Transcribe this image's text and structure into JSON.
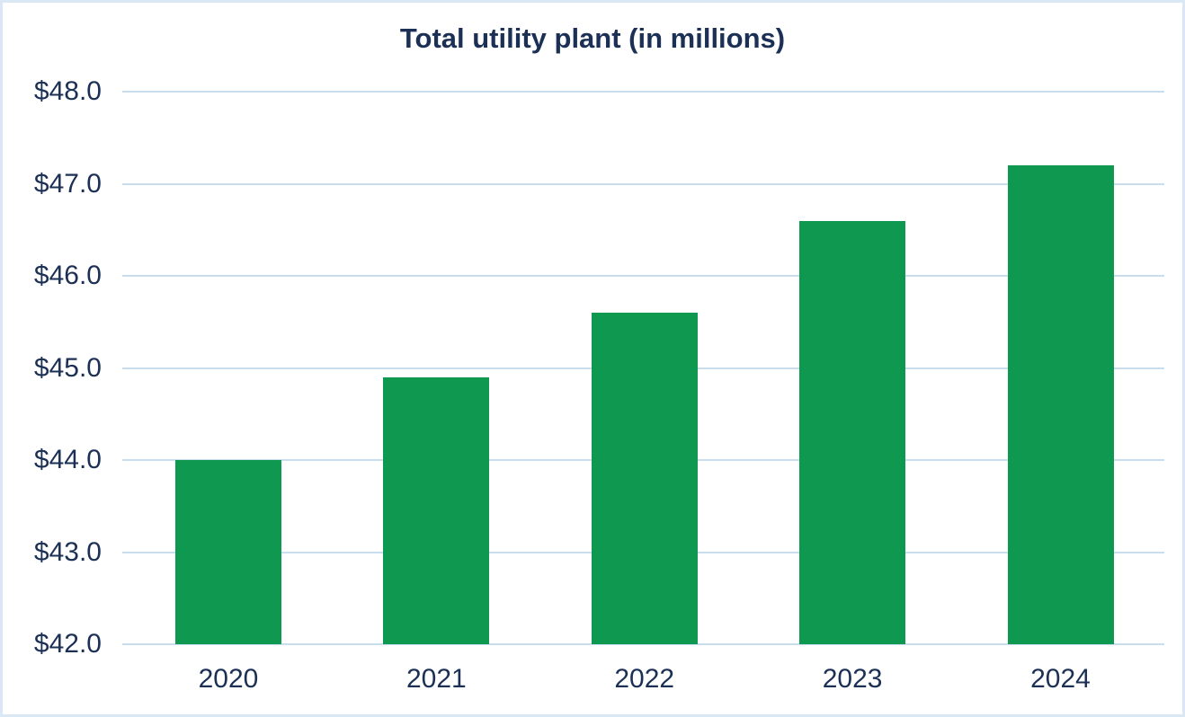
{
  "title": "Total utility plant (in millions)",
  "colors": {
    "bar": "#0f9950",
    "text": "#1b3054",
    "gridline": "#c8ddee",
    "frame_border": "#d9e8f4",
    "background": "#ffffff"
  },
  "chart_data": {
    "type": "bar",
    "title": "Total utility plant (in millions)",
    "categories": [
      "2020",
      "2021",
      "2022",
      "2023",
      "2024"
    ],
    "values": [
      44.0,
      44.9,
      45.6,
      46.6,
      47.2
    ],
    "unit": "USD millions",
    "xlabel": "",
    "ylabel": "",
    "ylim": [
      42.0,
      48.0
    ],
    "ytick_step": 1.0,
    "ytick_labels": [
      "$42.0",
      "$43.0",
      "$44.0",
      "$45.0",
      "$46.0",
      "$47.0",
      "$48.0"
    ],
    "grid": "horizontal",
    "legend": "none"
  }
}
